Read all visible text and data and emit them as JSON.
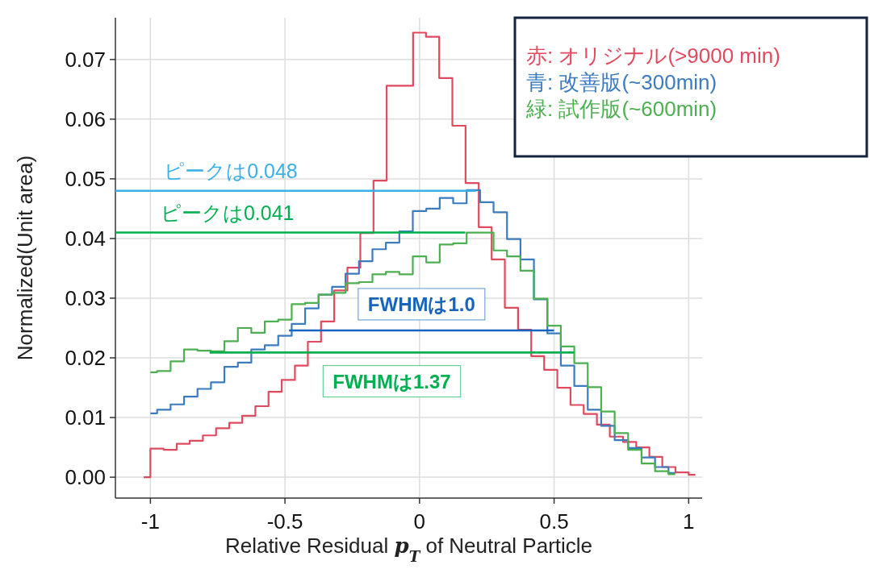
{
  "chart_data": {
    "type": "histogram",
    "xlabel": "Relative Residual *p*$_{T}$ of Neutral Particle",
    "ylabel": "Normalized(Unit area)",
    "xlim": [
      -1.13,
      1.05
    ],
    "ylim": [
      -0.0035,
      0.077
    ],
    "xticks": [
      {
        "value": -1,
        "label": "-1"
      },
      {
        "value": -0.5,
        "label": "-0.5"
      },
      {
        "value": 0,
        "label": "0"
      },
      {
        "value": 0.5,
        "label": "0.5"
      },
      {
        "value": 1,
        "label": "1"
      }
    ],
    "yticks": [
      {
        "value": 0,
        "label": "0.00"
      },
      {
        "value": 0.01,
        "label": "0.01"
      },
      {
        "value": 0.02,
        "label": "0.02"
      },
      {
        "value": 0.03,
        "label": "0.03"
      },
      {
        "value": 0.04,
        "label": "0.04"
      },
      {
        "value": 0.05,
        "label": "0.05"
      },
      {
        "value": 0.06,
        "label": "0.06"
      },
      {
        "value": 0.07,
        "label": "0.07"
      }
    ],
    "grid": true,
    "legend": "top right",
    "series": [
      {
        "name": "赤: オリジナル(>9000 min)",
        "color": "#e04a5f",
        "bins": [
          -1.025,
          -1,
          -0.951,
          -0.902,
          -0.854,
          -0.805,
          -0.756,
          -0.707,
          -0.659,
          -0.61,
          -0.561,
          -0.512,
          -0.463,
          -0.415,
          -0.366,
          -0.317,
          -0.268,
          -0.22,
          -0.171,
          -0.122,
          -0.073,
          -0.024,
          0.024,
          0.073,
          0.122,
          0.171,
          0.22,
          0.268,
          0.317,
          0.366,
          0.415,
          0.463,
          0.512,
          0.561,
          0.61,
          0.659,
          0.707,
          0.756,
          0.805,
          0.854,
          0.902,
          0.951,
          1,
          1.025
        ],
        "values": [
          0,
          0.0048,
          0.0046,
          0.0056,
          0.0061,
          0.007,
          0.0082,
          0.0091,
          0.0103,
          0.0119,
          0.0143,
          0.0163,
          0.0187,
          0.0227,
          0.0261,
          0.0313,
          0.0351,
          0.0409,
          0.0497,
          0.0656,
          0.0656,
          0.0745,
          0.0738,
          0.0669,
          0.0589,
          0.0493,
          0.0419,
          0.0365,
          0.0284,
          0.0247,
          0.0203,
          0.018,
          0.015,
          0.0121,
          0.0106,
          0.0088,
          0.0068,
          0.0059,
          0.005,
          0.0034,
          0.0017,
          0.0008,
          0.0004
        ]
      },
      {
        "name": "青: 改善版(~300min)",
        "color": "#3b7bbf",
        "bins": [
          -1,
          -0.975,
          -0.925,
          -0.875,
          -0.825,
          -0.775,
          -0.725,
          -0.675,
          -0.625,
          -0.575,
          -0.525,
          -0.475,
          -0.425,
          -0.375,
          -0.325,
          -0.275,
          -0.225,
          -0.175,
          -0.125,
          -0.075,
          -0.025,
          0.025,
          0.075,
          0.125,
          0.175,
          0.225,
          0.275,
          0.325,
          0.375,
          0.425,
          0.475,
          0.525,
          0.575,
          0.625,
          0.675,
          0.725,
          0.775,
          0.825,
          0.875,
          0.925,
          0.95
        ],
        "values": [
          0.0107,
          0.0113,
          0.0122,
          0.0135,
          0.0148,
          0.0159,
          0.0185,
          0.0192,
          0.0214,
          0.0221,
          0.0237,
          0.0257,
          0.0283,
          0.0306,
          0.0319,
          0.0341,
          0.0362,
          0.0382,
          0.0393,
          0.0412,
          0.0446,
          0.045,
          0.0468,
          0.0459,
          0.0481,
          0.0461,
          0.0444,
          0.0399,
          0.0365,
          0.0298,
          0.0241,
          0.0187,
          0.0153,
          0.0113,
          0.0086,
          0.0062,
          0.0049,
          0.0033,
          0.0017,
          0.0007
        ]
      },
      {
        "name": "緑: 試作版(~600min)",
        "color": "#4caf50",
        "bins": [
          -1,
          -0.975,
          -0.925,
          -0.875,
          -0.825,
          -0.775,
          -0.725,
          -0.675,
          -0.625,
          -0.575,
          -0.525,
          -0.475,
          -0.425,
          -0.375,
          -0.325,
          -0.275,
          -0.225,
          -0.175,
          -0.125,
          -0.075,
          -0.025,
          0.025,
          0.075,
          0.125,
          0.175,
          0.225,
          0.275,
          0.325,
          0.375,
          0.425,
          0.475,
          0.525,
          0.575,
          0.625,
          0.675,
          0.725,
          0.775,
          0.825,
          0.875,
          0.925,
          0.95
        ],
        "values": [
          0.0176,
          0.0178,
          0.0194,
          0.0214,
          0.0212,
          0.0211,
          0.0228,
          0.025,
          0.0242,
          0.0261,
          0.0264,
          0.029,
          0.0292,
          0.0306,
          0.0309,
          0.0325,
          0.0327,
          0.034,
          0.0344,
          0.034,
          0.037,
          0.036,
          0.039,
          0.0392,
          0.041,
          0.041,
          0.038,
          0.037,
          0.0346,
          0.0299,
          0.0254,
          0.0219,
          0.0191,
          0.0151,
          0.011,
          0.0074,
          0.0046,
          0.0023,
          0.001,
          0.0005
        ]
      },
      {
        "type": "line",
        "color": "#3bb0e8",
        "x": [
          -1.13,
          0.21
        ],
        "values": [
          0.048,
          0.048
        ]
      },
      {
        "type": "line",
        "color": "#00b050",
        "x": [
          -1.13,
          0.17
        ],
        "values": [
          0.041,
          0.041
        ]
      },
      {
        "type": "line",
        "color": "#1565c0",
        "x": [
          -0.485,
          0.5
        ],
        "values": [
          0.0246,
          0.0246
        ]
      },
      {
        "type": "line",
        "color": "#00b050",
        "x": [
          -0.78,
          0.574
        ],
        "values": [
          0.0209,
          0.0209
        ]
      }
    ],
    "annotations": [
      "ピークは0.048",
      "ピークは0.041",
      "**FWHMは1.0**",
      "**FWHMは1.37**"
    ]
  }
}
